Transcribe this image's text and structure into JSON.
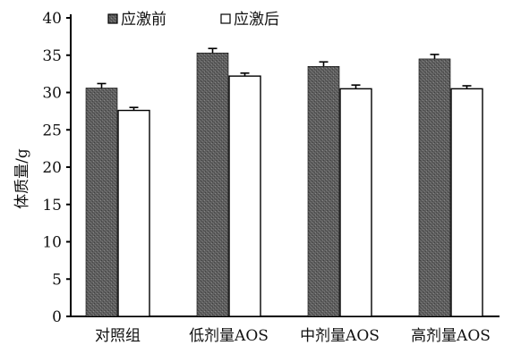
{
  "chart_data": {
    "type": "bar",
    "ylabel": "体质量/g",
    "xlabel": "",
    "ylim": [
      0,
      40
    ],
    "yticks": [
      0,
      5,
      10,
      15,
      20,
      25,
      30,
      35,
      40
    ],
    "categories": [
      "对照组",
      "低剂量AOS",
      "中剂量AOS",
      "高剂量AOS"
    ],
    "series": [
      {
        "name": "应激前",
        "values": [
          30.6,
          35.3,
          33.5,
          34.5
        ],
        "errors": [
          0.6,
          0.6,
          0.6,
          0.6
        ],
        "fill": "#6e6e6e"
      },
      {
        "name": "应激后",
        "values": [
          27.6,
          32.2,
          30.5,
          30.5
        ],
        "errors": [
          0.4,
          0.4,
          0.5,
          0.4
        ],
        "fill": "#ffffff"
      }
    ],
    "legend": "top-left",
    "grid": false
  }
}
